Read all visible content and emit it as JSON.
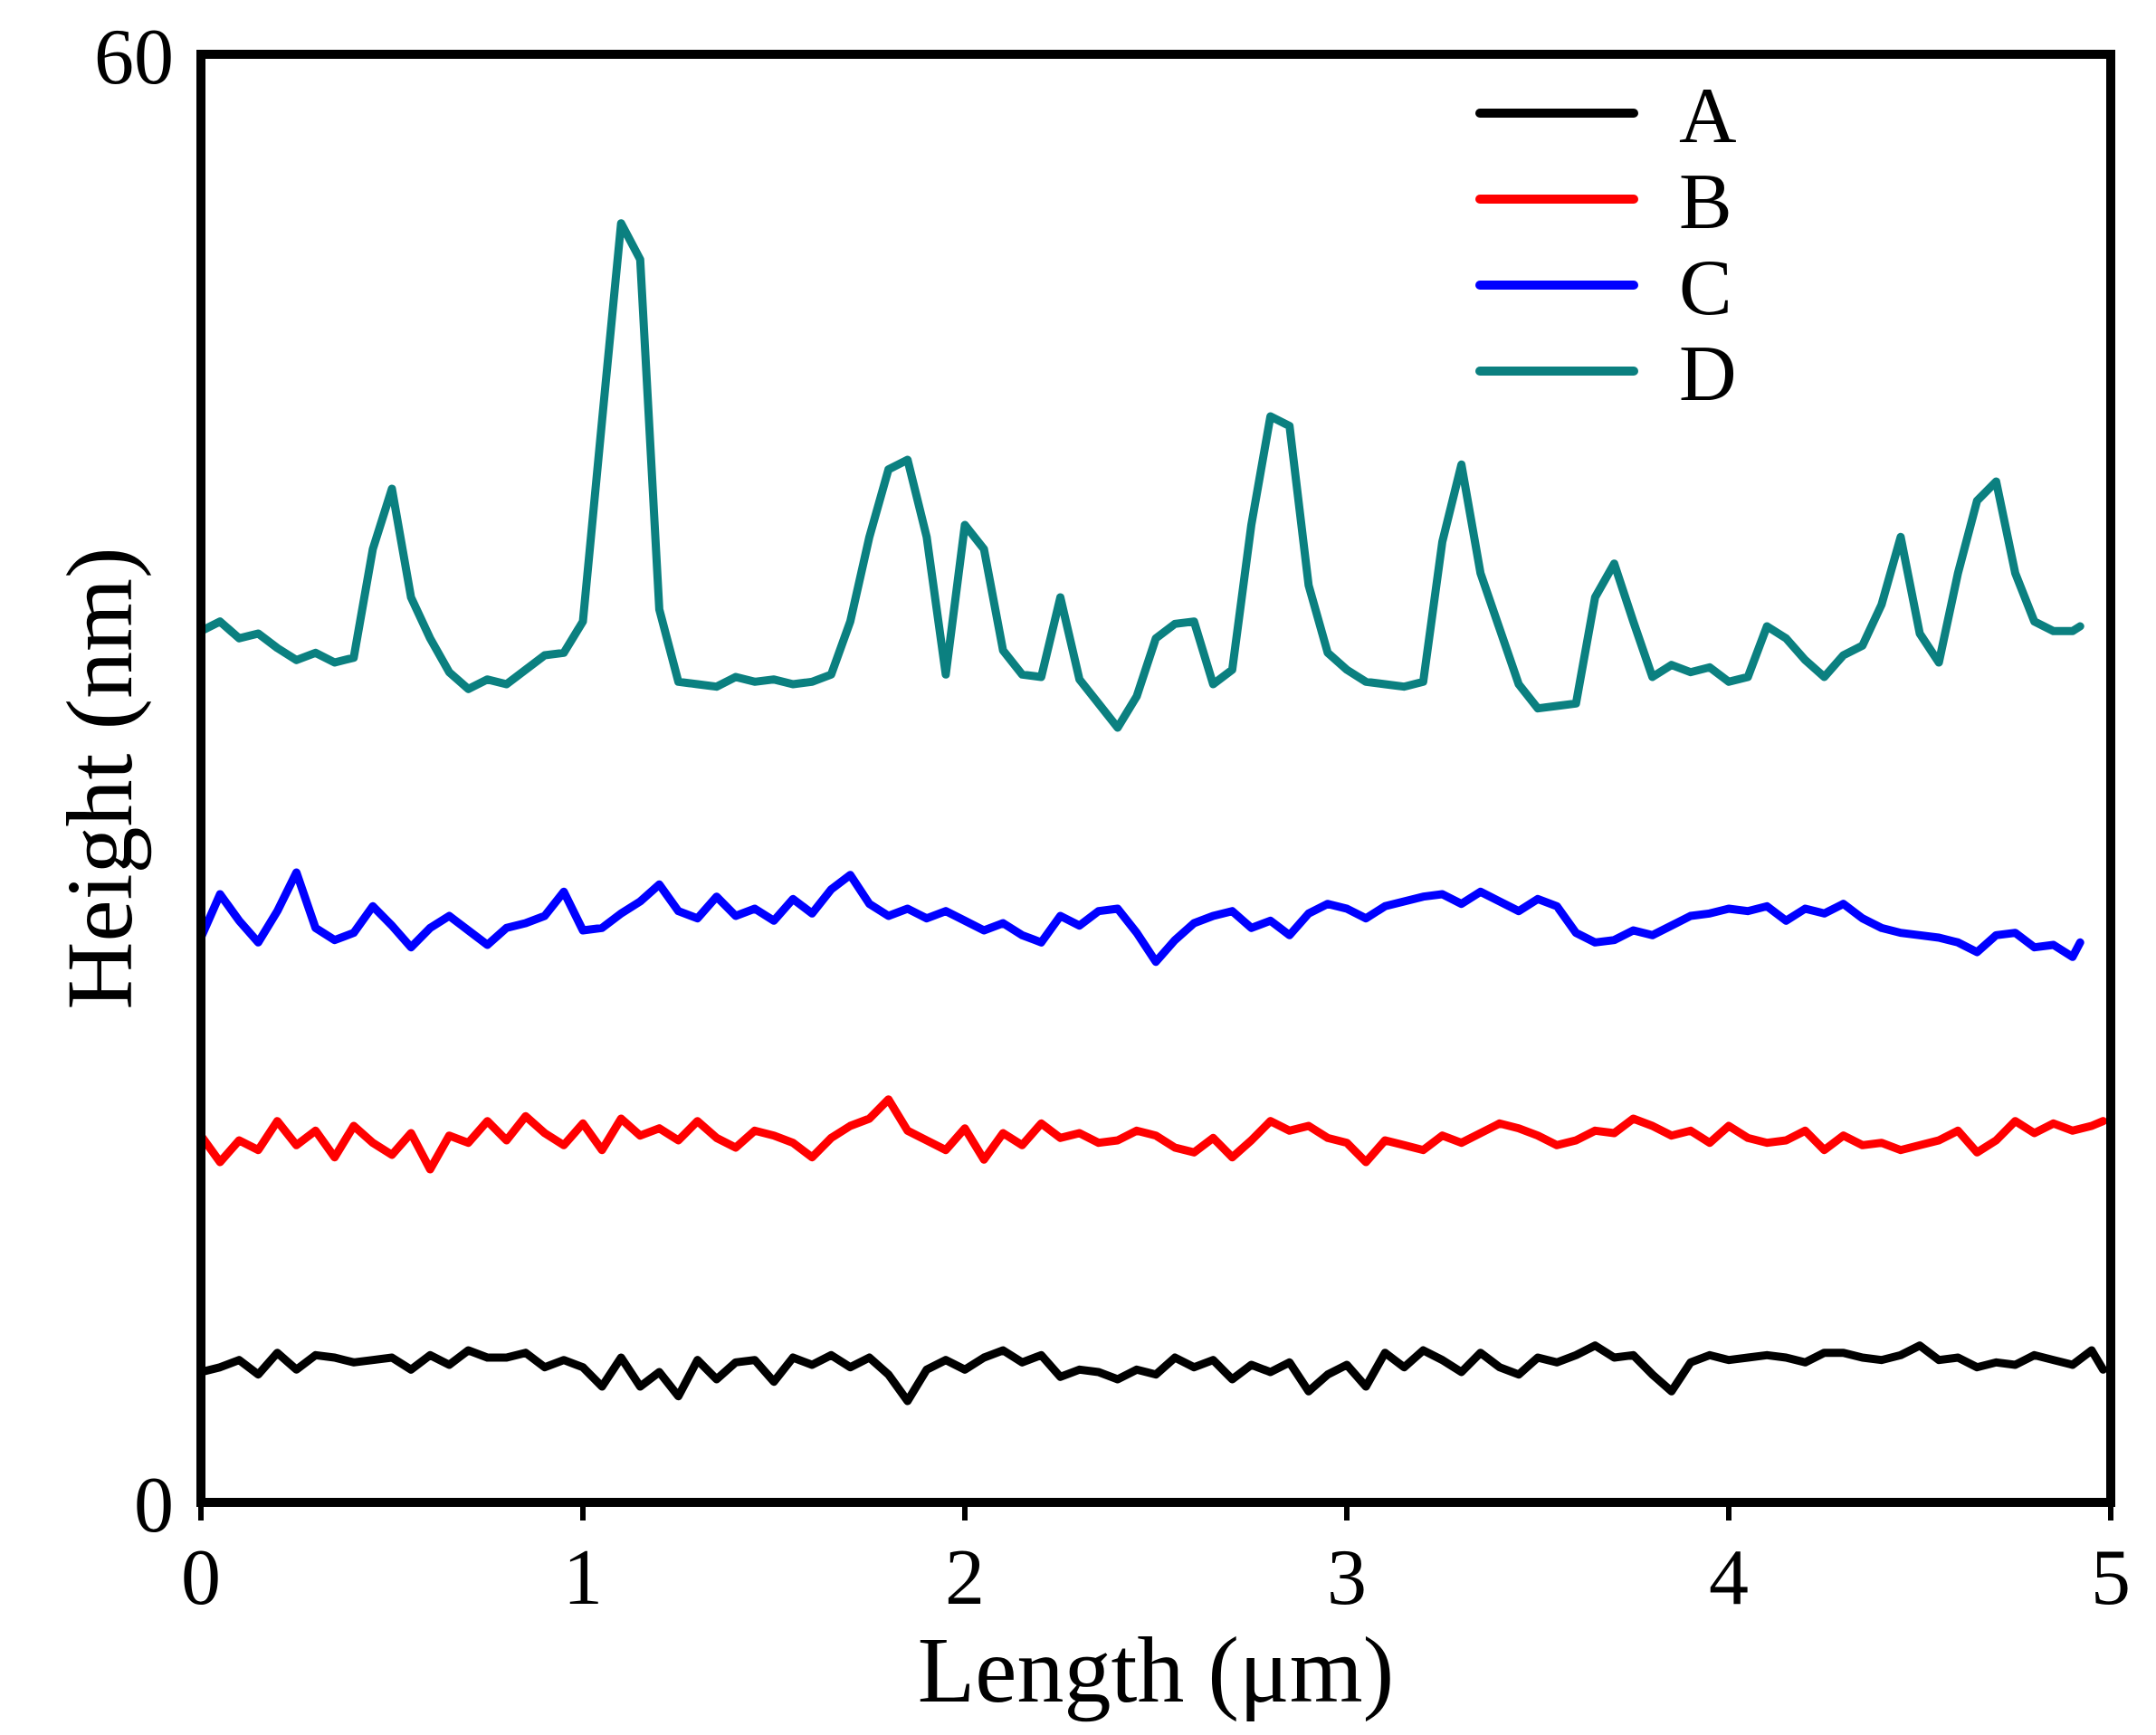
{
  "chart_data": {
    "type": "line",
    "title": "",
    "xlabel": "Length (μm)",
    "ylabel": "Height (nm)",
    "xlim": [
      0,
      5
    ],
    "ylim": [
      0,
      60
    ],
    "xticks": [
      0,
      1,
      2,
      3,
      4,
      5
    ],
    "yticks": [
      0,
      60
    ],
    "grid": false,
    "legend_position": "top-right",
    "series": [
      {
        "name": "A",
        "color": "#000000",
        "x": [
          0,
          0.05,
          0.1,
          0.15,
          0.2,
          0.25,
          0.3,
          0.35,
          0.4,
          0.45,
          0.5,
          0.55,
          0.6,
          0.65,
          0.7,
          0.75,
          0.8,
          0.85,
          0.9,
          0.95,
          1.0,
          1.05,
          1.1,
          1.15,
          1.2,
          1.25,
          1.3,
          1.35,
          1.4,
          1.45,
          1.5,
          1.55,
          1.6,
          1.65,
          1.7,
          1.75,
          1.8,
          1.85,
          1.9,
          1.95,
          2.0,
          2.05,
          2.1,
          2.15,
          2.2,
          2.25,
          2.3,
          2.35,
          2.4,
          2.45,
          2.5,
          2.55,
          2.6,
          2.65,
          2.7,
          2.75,
          2.8,
          2.85,
          2.9,
          2.95,
          3.0,
          3.05,
          3.1,
          3.15,
          3.2,
          3.25,
          3.3,
          3.35,
          3.4,
          3.45,
          3.5,
          3.55,
          3.6,
          3.65,
          3.7,
          3.75,
          3.8,
          3.85,
          3.9,
          3.95,
          4.0,
          4.05,
          4.1,
          4.15,
          4.2,
          4.25,
          4.3,
          4.35,
          4.4,
          4.45,
          4.5,
          4.55,
          4.6,
          4.65,
          4.7,
          4.75,
          4.8,
          4.85,
          4.9,
          4.95,
          4.98
        ],
        "y": [
          5.4,
          5.6,
          5.9,
          5.3,
          6.2,
          5.5,
          6.1,
          6.0,
          5.8,
          5.9,
          6.0,
          5.5,
          6.1,
          5.7,
          6.3,
          6.0,
          6.0,
          6.2,
          5.6,
          5.9,
          5.6,
          4.8,
          6.0,
          4.8,
          5.4,
          4.4,
          5.9,
          5.1,
          5.8,
          5.9,
          5.0,
          6.0,
          5.7,
          6.1,
          5.6,
          6.0,
          5.3,
          4.2,
          5.5,
          5.9,
          5.5,
          6.0,
          6.3,
          5.8,
          6.1,
          5.2,
          5.5,
          5.4,
          5.1,
          5.5,
          5.3,
          6.0,
          5.6,
          5.9,
          5.1,
          5.7,
          5.4,
          5.8,
          4.6,
          5.3,
          5.7,
          4.8,
          6.2,
          5.6,
          6.3,
          5.9,
          5.4,
          6.2,
          5.6,
          5.3,
          6.0,
          5.8,
          6.1,
          6.5,
          6.0,
          6.1,
          5.3,
          4.6,
          5.8,
          6.1,
          5.9,
          6.0,
          6.1,
          6.0,
          5.8,
          6.2,
          6.2,
          6.0,
          5.9,
          6.1,
          6.5,
          5.9,
          6.0,
          5.6,
          5.8,
          5.7,
          6.1,
          5.9,
          5.7,
          6.3,
          5.5
        ]
      },
      {
        "name": "B",
        "color": "#ff0000",
        "x": [
          0,
          0.05,
          0.1,
          0.15,
          0.2,
          0.25,
          0.3,
          0.35,
          0.4,
          0.45,
          0.5,
          0.55,
          0.6,
          0.65,
          0.7,
          0.75,
          0.8,
          0.85,
          0.9,
          0.95,
          1.0,
          1.05,
          1.1,
          1.15,
          1.2,
          1.25,
          1.3,
          1.35,
          1.4,
          1.45,
          1.5,
          1.55,
          1.6,
          1.65,
          1.7,
          1.75,
          1.8,
          1.85,
          1.9,
          1.95,
          2.0,
          2.05,
          2.1,
          2.15,
          2.2,
          2.25,
          2.3,
          2.35,
          2.4,
          2.45,
          2.5,
          2.55,
          2.6,
          2.65,
          2.7,
          2.75,
          2.8,
          2.85,
          2.9,
          2.95,
          3.0,
          3.05,
          3.1,
          3.15,
          3.2,
          3.25,
          3.3,
          3.35,
          3.4,
          3.45,
          3.5,
          3.55,
          3.6,
          3.65,
          3.7,
          3.75,
          3.8,
          3.85,
          3.9,
          3.95,
          4.0,
          4.05,
          4.1,
          4.15,
          4.2,
          4.25,
          4.3,
          4.35,
          4.4,
          4.45,
          4.5,
          4.55,
          4.6,
          4.65,
          4.7,
          4.75,
          4.8,
          4.85,
          4.9,
          4.95,
          4.98
        ],
        "y": [
          15.2,
          14.1,
          15.0,
          14.6,
          15.8,
          14.8,
          15.4,
          14.3,
          15.6,
          14.9,
          14.4,
          15.3,
          13.8,
          15.2,
          14.9,
          15.8,
          15.0,
          16.0,
          15.3,
          14.8,
          15.7,
          14.6,
          15.9,
          15.2,
          15.5,
          15.0,
          15.8,
          15.1,
          14.7,
          15.4,
          15.2,
          14.9,
          14.3,
          15.1,
          15.6,
          15.9,
          16.7,
          15.4,
          15.0,
          14.6,
          15.5,
          14.2,
          15.3,
          14.8,
          15.7,
          15.1,
          15.3,
          14.9,
          15.0,
          15.4,
          15.2,
          14.7,
          14.5,
          15.1,
          14.3,
          15.0,
          15.8,
          15.4,
          15.6,
          15.1,
          14.9,
          14.1,
          15.0,
          14.8,
          14.6,
          15.2,
          14.9,
          15.3,
          15.7,
          15.5,
          15.2,
          14.8,
          15.0,
          15.4,
          15.3,
          15.9,
          15.6,
          15.2,
          15.4,
          14.9,
          15.6,
          15.1,
          14.9,
          15.0,
          15.4,
          14.6,
          15.2,
          14.8,
          14.9,
          14.6,
          14.8,
          15.0,
          15.4,
          14.5,
          15.0,
          15.8,
          15.3,
          15.7,
          15.4,
          15.6,
          15.8
        ]
      },
      {
        "name": "C",
        "color": "#0000ff",
        "x": [
          0,
          0.05,
          0.1,
          0.15,
          0.2,
          0.25,
          0.3,
          0.35,
          0.4,
          0.45,
          0.5,
          0.55,
          0.6,
          0.65,
          0.7,
          0.75,
          0.8,
          0.85,
          0.9,
          0.95,
          1.0,
          1.05,
          1.1,
          1.15,
          1.2,
          1.25,
          1.3,
          1.35,
          1.4,
          1.45,
          1.5,
          1.55,
          1.6,
          1.65,
          1.7,
          1.75,
          1.8,
          1.85,
          1.9,
          1.95,
          2.0,
          2.05,
          2.1,
          2.15,
          2.2,
          2.25,
          2.3,
          2.35,
          2.4,
          2.45,
          2.5,
          2.55,
          2.6,
          2.65,
          2.7,
          2.75,
          2.8,
          2.85,
          2.9,
          2.95,
          3.0,
          3.05,
          3.1,
          3.15,
          3.2,
          3.25,
          3.3,
          3.35,
          3.4,
          3.45,
          3.5,
          3.55,
          3.6,
          3.65,
          3.7,
          3.75,
          3.8,
          3.85,
          3.9,
          3.95,
          4.0,
          4.05,
          4.1,
          4.15,
          4.2,
          4.25,
          4.3,
          4.35,
          4.4,
          4.45,
          4.5,
          4.55,
          4.6,
          4.65,
          4.7,
          4.75,
          4.8,
          4.85,
          4.9,
          4.92
        ],
        "y": [
          23.4,
          25.2,
          24.1,
          23.2,
          24.5,
          26.1,
          23.8,
          23.3,
          23.6,
          24.7,
          23.9,
          23.0,
          23.8,
          24.3,
          23.7,
          23.1,
          23.8,
          24.0,
          24.3,
          25.3,
          23.7,
          23.8,
          24.4,
          24.9,
          25.6,
          24.5,
          24.2,
          25.1,
          24.3,
          24.6,
          24.1,
          25.0,
          24.4,
          25.4,
          26.0,
          24.8,
          24.3,
          24.6,
          24.2,
          24.5,
          24.1,
          23.7,
          24.0,
          23.5,
          23.2,
          24.3,
          23.9,
          24.5,
          24.6,
          23.6,
          22.4,
          23.3,
          24.0,
          24.3,
          24.5,
          23.8,
          24.1,
          23.5,
          24.4,
          24.8,
          24.6,
          24.2,
          24.7,
          24.9,
          25.1,
          25.2,
          24.8,
          25.3,
          24.9,
          24.5,
          25.0,
          24.7,
          23.6,
          23.2,
          23.3,
          23.7,
          23.5,
          23.9,
          24.3,
          24.4,
          24.6,
          24.5,
          24.7,
          24.1,
          24.6,
          24.4,
          24.8,
          24.2,
          23.8,
          23.6,
          23.5,
          23.4,
          23.2,
          22.8,
          23.5,
          23.6,
          23.0,
          23.1,
          22.6,
          23.2
        ]
      },
      {
        "name": "D",
        "color": "#0b8080",
        "x": [
          0,
          0.05,
          0.1,
          0.15,
          0.2,
          0.25,
          0.3,
          0.35,
          0.4,
          0.45,
          0.5,
          0.55,
          0.6,
          0.65,
          0.7,
          0.75,
          0.8,
          0.85,
          0.9,
          0.95,
          1.0,
          1.05,
          1.1,
          1.15,
          1.2,
          1.25,
          1.3,
          1.35,
          1.4,
          1.45,
          1.5,
          1.55,
          1.6,
          1.65,
          1.7,
          1.75,
          1.8,
          1.85,
          1.9,
          1.95,
          2.0,
          2.05,
          2.1,
          2.15,
          2.2,
          2.25,
          2.3,
          2.35,
          2.4,
          2.45,
          2.5,
          2.55,
          2.6,
          2.65,
          2.7,
          2.75,
          2.8,
          2.85,
          2.9,
          2.95,
          3.0,
          3.05,
          3.1,
          3.15,
          3.2,
          3.25,
          3.3,
          3.35,
          3.4,
          3.45,
          3.5,
          3.55,
          3.6,
          3.65,
          3.7,
          3.75,
          3.8,
          3.85,
          3.9,
          3.95,
          4.0,
          4.05,
          4.1,
          4.15,
          4.2,
          4.25,
          4.3,
          4.35,
          4.4,
          4.45,
          4.5,
          4.55,
          4.6,
          4.65,
          4.7,
          4.75,
          4.8,
          4.85,
          4.9,
          4.92
        ],
        "y": [
          36.1,
          36.5,
          35.8,
          36.0,
          35.4,
          34.9,
          35.2,
          34.8,
          35.0,
          39.5,
          42.0,
          37.5,
          35.8,
          34.4,
          33.7,
          34.1,
          33.9,
          34.5,
          35.1,
          35.2,
          36.5,
          44.8,
          53.0,
          51.5,
          37.0,
          34.0,
          33.9,
          33.8,
          34.2,
          34.0,
          34.1,
          33.9,
          34.0,
          34.3,
          36.5,
          40.0,
          42.8,
          43.2,
          40.0,
          34.3,
          40.5,
          39.5,
          35.3,
          34.3,
          34.2,
          37.5,
          34.1,
          33.1,
          32.1,
          33.4,
          35.8,
          36.4,
          36.5,
          33.9,
          34.5,
          40.5,
          45.0,
          44.6,
          38.0,
          35.2,
          34.5,
          34.0,
          33.9,
          33.8,
          34.0,
          39.8,
          43.0,
          38.5,
          36.2,
          33.9,
          32.9,
          33.0,
          33.1,
          37.5,
          38.9,
          36.5,
          34.2,
          34.7,
          34.4,
          34.6,
          34.0,
          34.2,
          36.3,
          35.8,
          34.9,
          34.2,
          35.1,
          35.5,
          37.2,
          40.0,
          36.0,
          34.8,
          38.5,
          41.5,
          42.3,
          38.5,
          36.5,
          36.1,
          36.1,
          36.3
        ]
      }
    ]
  }
}
